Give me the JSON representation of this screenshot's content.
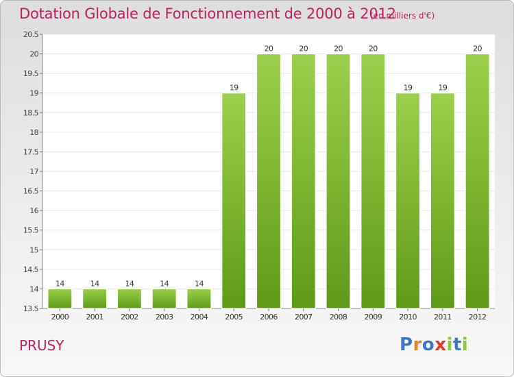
{
  "header": {
    "title": "Dotation Globale de Fonctionnement de 2000 à 2012",
    "subtitle": "(en milliers d'€)"
  },
  "footer": {
    "commune": "PRUSY",
    "logo_text": "Proxiti"
  },
  "colors": {
    "title": "#c0205a",
    "bar_top": "#9cd04c",
    "bar_bottom": "#5f9a16",
    "logo": [
      "#3a78c6",
      "#e8831f",
      "#3a78c6",
      "#e23b2c",
      "#8cc63f",
      "#3a78c6",
      "#8cc63f"
    ]
  },
  "chart_data": {
    "type": "bar",
    "categories": [
      "2000",
      "2001",
      "2002",
      "2003",
      "2004",
      "2005",
      "2006",
      "2007",
      "2008",
      "2009",
      "2010",
      "2011",
      "2012"
    ],
    "values": [
      14,
      14,
      14,
      14,
      14,
      19,
      20,
      20,
      20,
      20,
      19,
      19,
      20
    ],
    "value_labels": [
      "14",
      "14",
      "14",
      "14",
      "14",
      "19",
      "20",
      "20",
      "20",
      "20",
      "19",
      "19",
      "20"
    ],
    "yticks": [
      "13.5",
      "14",
      "14.5",
      "15",
      "15.5",
      "16",
      "16.5",
      "17",
      "17.5",
      "18",
      "18.5",
      "19",
      "19.5",
      "20",
      "20.5"
    ],
    "ylim": [
      13.5,
      20.5
    ],
    "grid": true,
    "title": "Dotation Globale de Fonctionnement de 2000 à 2012",
    "xlabel": "",
    "ylabel": ""
  }
}
